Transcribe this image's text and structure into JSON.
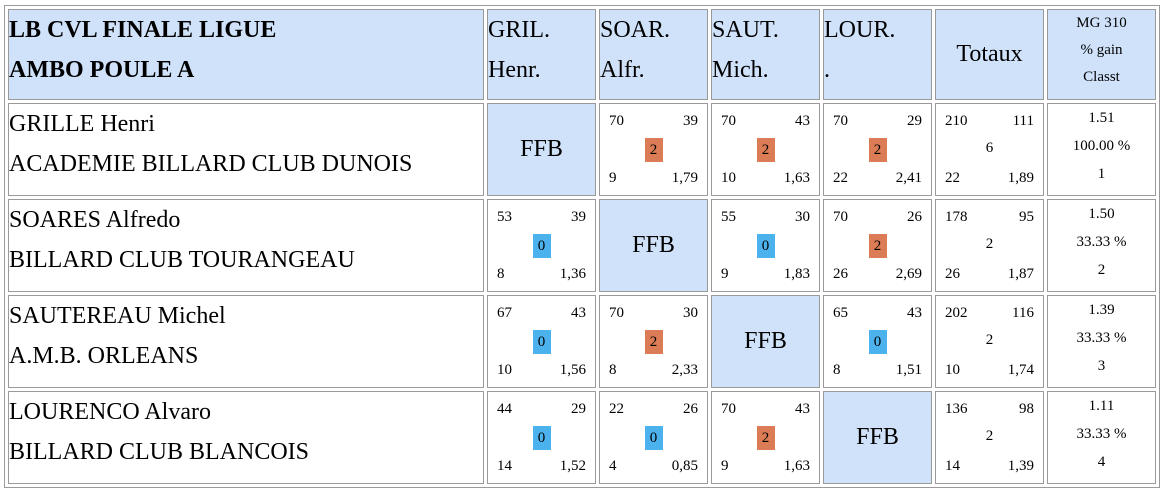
{
  "header": {
    "title_line1": "LB CVL FINALE LIGUE",
    "title_line2": "AMBO POULE A",
    "columns": [
      {
        "line1": "GRIL.",
        "line2": "Henr."
      },
      {
        "line1": "SOAR.",
        "line2": "Alfr."
      },
      {
        "line1": "SAUT.",
        "line2": "Mich."
      },
      {
        "line1": "LOUR.",
        "line2": "."
      }
    ],
    "totaux": "Totaux",
    "mg_line1": "MG 310",
    "mg_line2": "% gain",
    "mg_line3": "Classt"
  },
  "colors": {
    "header_bg": "#cfe2fa",
    "win_badge": "#db7c56",
    "loss_badge": "#4cb2ee"
  },
  "players": [
    {
      "name": "GRILLE Henri",
      "club": "ACADEMIE BILLARD CLUB DUNOIS",
      "ffb_label": "FFB",
      "matches": [
        null,
        {
          "pts": "70",
          "series": "39",
          "score": "2",
          "result": "win",
          "reprises": "9",
          "moy": "1,79"
        },
        {
          "pts": "70",
          "series": "43",
          "score": "2",
          "result": "win",
          "reprises": "10",
          "moy": "1,63"
        },
        {
          "pts": "70",
          "series": "29",
          "score": "2",
          "result": "win",
          "reprises": "22",
          "moy": "2,41"
        }
      ],
      "totals": {
        "pts": "210",
        "series": "111",
        "score": "6",
        "reprises": "22",
        "moy": "1,89"
      },
      "mg": "1.51",
      "pct": "100.00 %",
      "rank": "1"
    },
    {
      "name": "SOARES Alfredo",
      "club": "BILLARD CLUB TOURANGEAU",
      "ffb_label": "FFB",
      "matches": [
        {
          "pts": "53",
          "series": "39",
          "score": "0",
          "result": "loss",
          "reprises": "8",
          "moy": "1,36"
        },
        null,
        {
          "pts": "55",
          "series": "30",
          "score": "0",
          "result": "loss",
          "reprises": "9",
          "moy": "1,83"
        },
        {
          "pts": "70",
          "series": "26",
          "score": "2",
          "result": "win",
          "reprises": "26",
          "moy": "2,69"
        }
      ],
      "totals": {
        "pts": "178",
        "series": "95",
        "score": "2",
        "reprises": "26",
        "moy": "1,87"
      },
      "mg": "1.50",
      "pct": "33.33 %",
      "rank": "2"
    },
    {
      "name": "SAUTEREAU Michel",
      "club": "A.M.B. ORLEANS",
      "ffb_label": "FFB",
      "matches": [
        {
          "pts": "67",
          "series": "43",
          "score": "0",
          "result": "loss",
          "reprises": "10",
          "moy": "1,56"
        },
        {
          "pts": "70",
          "series": "30",
          "score": "2",
          "result": "win",
          "reprises": "8",
          "moy": "2,33"
        },
        null,
        {
          "pts": "65",
          "series": "43",
          "score": "0",
          "result": "loss",
          "reprises": "8",
          "moy": "1,51"
        }
      ],
      "totals": {
        "pts": "202",
        "series": "116",
        "score": "2",
        "reprises": "10",
        "moy": "1,74"
      },
      "mg": "1.39",
      "pct": "33.33 %",
      "rank": "3"
    },
    {
      "name": "LOURENCO Alvaro",
      "club": "BILLARD CLUB BLANCOIS",
      "ffb_label": "FFB",
      "matches": [
        {
          "pts": "44",
          "series": "29",
          "score": "0",
          "result": "loss",
          "reprises": "14",
          "moy": "1,52"
        },
        {
          "pts": "22",
          "series": "26",
          "score": "0",
          "result": "loss",
          "reprises": "4",
          "moy": "0,85"
        },
        {
          "pts": "70",
          "series": "43",
          "score": "2",
          "result": "win",
          "reprises": "9",
          "moy": "1,63"
        },
        null
      ],
      "totals": {
        "pts": "136",
        "series": "98",
        "score": "2",
        "reprises": "14",
        "moy": "1,39"
      },
      "mg": "1.11",
      "pct": "33.33 %",
      "rank": "4"
    }
  ]
}
